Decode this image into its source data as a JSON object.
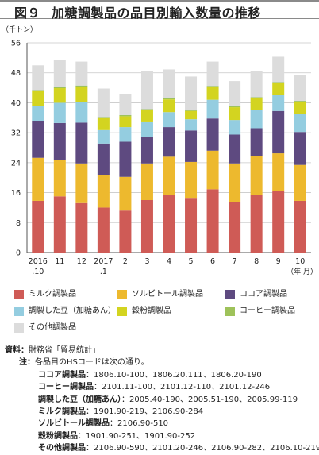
{
  "title_fig": "図９",
  "title_text": "加糖調製品の品目別輸入数量の推移",
  "chart_data": {
    "type": "bar",
    "stacked": true,
    "unit_label": "（千トン）",
    "x_unit_label": "（年.月）",
    "ylim": [
      0,
      56
    ],
    "yticks": [
      0,
      8,
      16,
      24,
      32,
      40,
      48,
      56
    ],
    "grid": true,
    "categories": [
      {
        "l1": "2016",
        "l2": ".10"
      },
      {
        "l1": "11",
        "l2": ""
      },
      {
        "l1": "12",
        "l2": ""
      },
      {
        "l1": "2017",
        "l2": ".1"
      },
      {
        "l1": "2",
        "l2": ""
      },
      {
        "l1": "3",
        "l2": ""
      },
      {
        "l1": "4",
        "l2": ""
      },
      {
        "l1": "5",
        "l2": ""
      },
      {
        "l1": "6",
        "l2": ""
      },
      {
        "l1": "7",
        "l2": ""
      },
      {
        "l1": "8",
        "l2": ""
      },
      {
        "l1": "9",
        "l2": ""
      },
      {
        "l1": "10",
        "l2": ""
      }
    ],
    "series": [
      {
        "name": "ミルク調製品",
        "color": "#cf5b56",
        "values": [
          13.8,
          15.0,
          13.2,
          12.0,
          11.2,
          14.0,
          15.4,
          14.6,
          16.9,
          13.5,
          15.3,
          16.5,
          13.8
        ]
      },
      {
        "name": "ソルビトール調製品",
        "color": "#edb92e",
        "values": [
          11.5,
          9.8,
          10.6,
          8.6,
          9.0,
          9.8,
          10.2,
          9.6,
          10.3,
          10.3,
          10.5,
          10.0,
          9.6
        ]
      },
      {
        "name": "ココア調製品",
        "color": "#5e4a80",
        "values": [
          9.7,
          9.8,
          10.9,
          8.5,
          9.4,
          7.1,
          7.9,
          8.4,
          8.6,
          7.7,
          7.4,
          11.3,
          8.8
        ]
      },
      {
        "name": "調製した豆（加糖あん）",
        "color": "#94cde0",
        "values": [
          4.2,
          5.4,
          5.4,
          3.6,
          3.9,
          3.9,
          4.0,
          3.0,
          5.0,
          3.9,
          4.8,
          4.2,
          4.8
        ]
      },
      {
        "name": "穀粉調製品",
        "color": "#d3d420",
        "values": [
          3.9,
          3.9,
          4.2,
          3.2,
          2.9,
          3.2,
          3.4,
          2.2,
          3.4,
          3.4,
          3.2,
          3.2,
          3.2
        ]
      },
      {
        "name": "コーヒー調製品",
        "color": "#9ec25a",
        "values": [
          0.3,
          0.3,
          0.3,
          0.3,
          0.3,
          0.3,
          0.3,
          0.3,
          0.3,
          0.3,
          0.3,
          0.3,
          0.3
        ]
      },
      {
        "name": "その他調製品",
        "color": "#dcdcdc",
        "values": [
          6.6,
          7.2,
          6.4,
          7.6,
          5.7,
          10.2,
          7.7,
          8.9,
          6.5,
          6.7,
          6.9,
          6.8,
          6.9
        ]
      }
    ]
  },
  "notes": {
    "source_head": "資料：",
    "source_text": "財務省「貿易統計」",
    "note_head": "注：",
    "note_text": "各品目のHSコードは次の通り。",
    "codes": [
      {
        "name": "ココア調製品",
        "codes": "：1806.10-100、1806.20.111、1806.20-190"
      },
      {
        "name": "コーヒー調製品",
        "codes": "：2101.11-100、2101.12-110、2101.12-246"
      },
      {
        "name": "調製した豆（加糖あん）",
        "codes": "：2005.40-190、2005.51-190、2005.99-119"
      },
      {
        "name": "ミルク調製品",
        "codes": "：1901.90-219、2106.90-284"
      },
      {
        "name": "ソルビトール調製品",
        "codes": "：2106.90-510"
      },
      {
        "name": "穀粉調製品",
        "codes": "：1901.90-251、1901.90-252"
      },
      {
        "name": "その他調製品",
        "codes": "：2106.90-590、2101.20-246、2106.90-282、2106.10-219"
      }
    ]
  }
}
